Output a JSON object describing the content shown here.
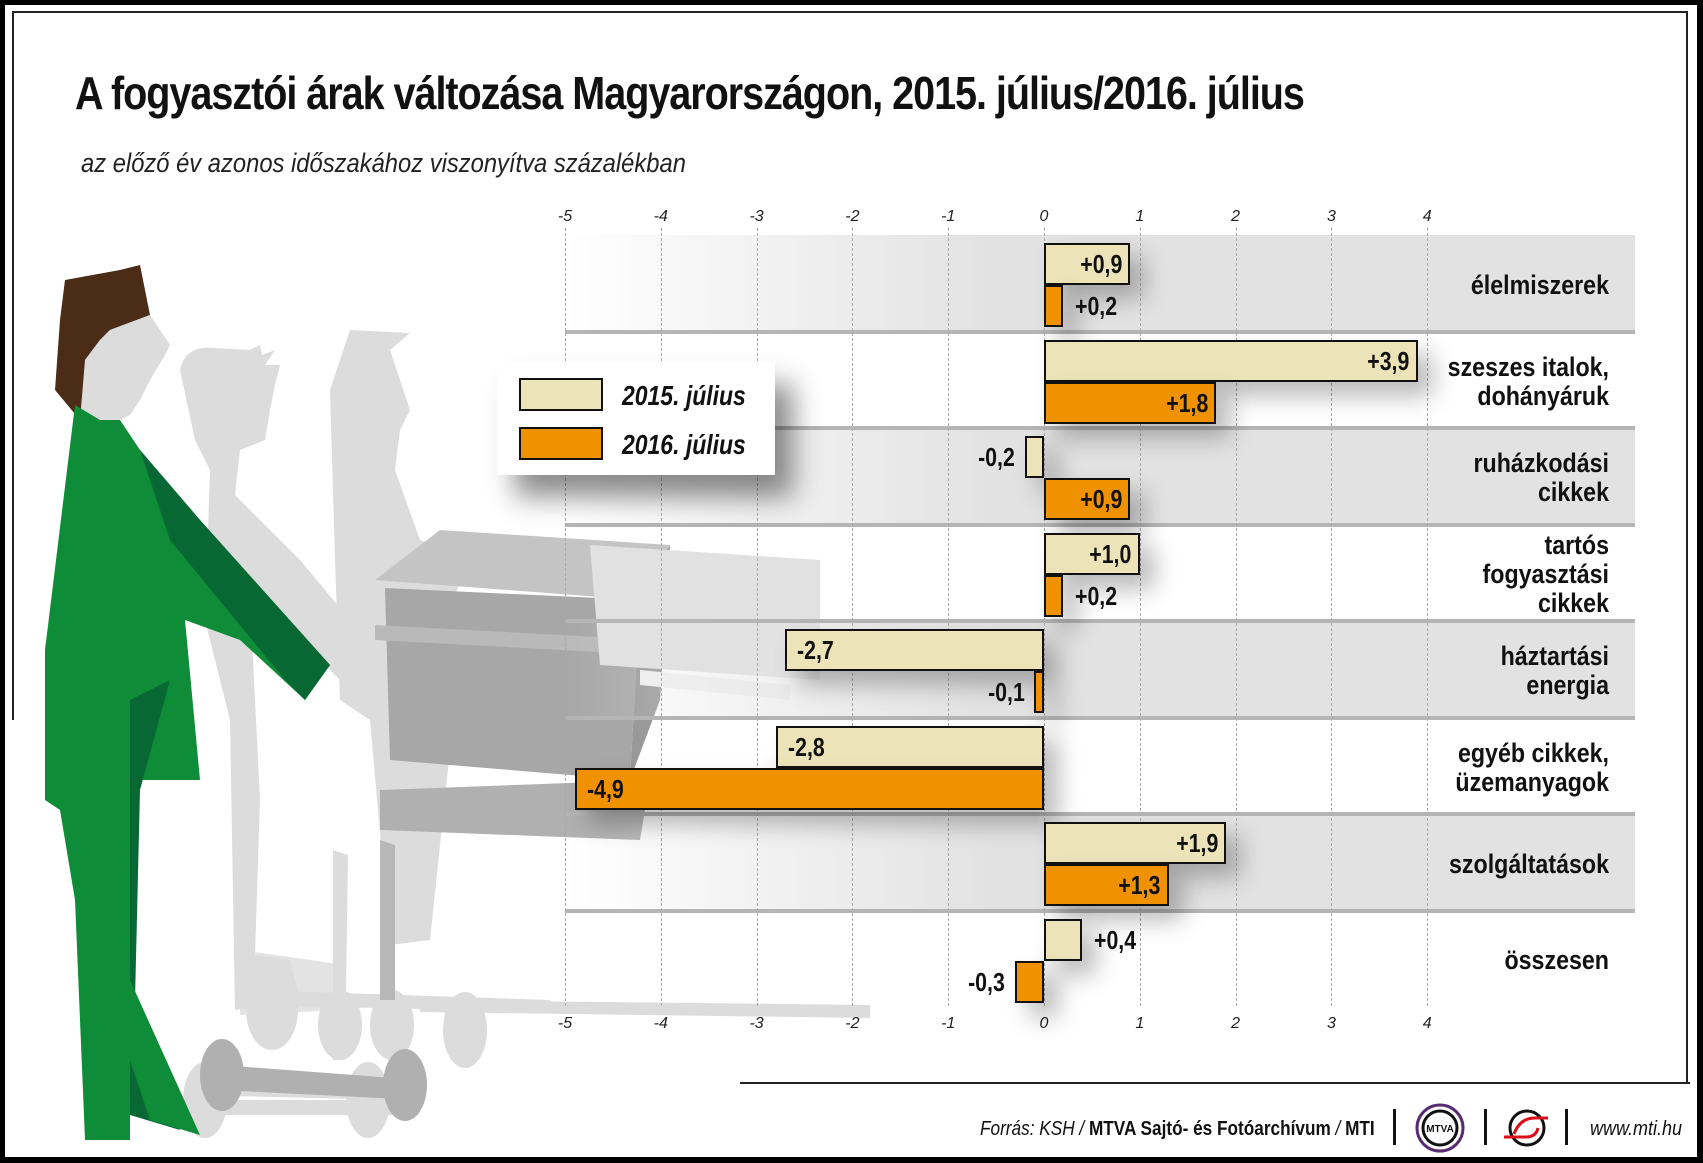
{
  "header": {
    "title": "A fogyasztói árak változása Magyarországon, 2015. július/2016. július",
    "subtitle": "az előző év azonos időszakához viszonyítva százalékban"
  },
  "legend": {
    "items": [
      {
        "label": "2015. július",
        "color": "#ede3b8"
      },
      {
        "label": "2016. július",
        "color": "#f09100"
      }
    ]
  },
  "axis": {
    "ticks": [
      "-5",
      "-4",
      "-3",
      "-2",
      "-1",
      "0",
      "1",
      "2",
      "3",
      "4"
    ]
  },
  "rows": [
    {
      "category": "élelmiszerek",
      "v2015": "+0,9",
      "v2016": "+0,2"
    },
    {
      "category": "szeszes italok, dohányáruk",
      "v2015": "+3,9",
      "v2016": "+1,8"
    },
    {
      "category": "ruházkodási cikkek",
      "v2015": "-0,2",
      "v2016": "+0,9"
    },
    {
      "category": "tartós fogyasztási cikkek",
      "v2015": "+1,0",
      "v2016": "+0,2"
    },
    {
      "category": "háztartási energia",
      "v2015": "-2,7",
      "v2016": "-0,1"
    },
    {
      "category": "egyéb cikkek, üzemanyagok",
      "v2015": "-2,8",
      "v2016": "-4,9"
    },
    {
      "category": "szolgáltatások",
      "v2015": "+1,9",
      "v2016": "+1,3"
    },
    {
      "category": "összesen",
      "v2015": "+0,4",
      "v2016": "-0,3"
    }
  ],
  "category_lines": [
    [
      "élelmiszerek"
    ],
    [
      "szeszes italok,",
      "dohányáruk"
    ],
    [
      "ruházkodási",
      "cikkek"
    ],
    [
      "tartós",
      "fogyasztási",
      "cikkek"
    ],
    [
      "háztartási",
      "energia"
    ],
    [
      "egyéb cikkek,",
      "üzemanyagok"
    ],
    [
      "szolgáltatások"
    ],
    [
      "összesen"
    ]
  ],
  "footer": {
    "source_prefix": "Forrás: KSH / ",
    "source_bold": "MTVA Sajtó- és Fotóarchívum",
    "source_sep": " / ",
    "source_mti": "MTI",
    "logo_mtva": "MTVA",
    "url": "www.mti.hu"
  },
  "colors": {
    "series_2015": "#ede3b8",
    "series_2016": "#f09100",
    "figure_green": "#0f8c38",
    "figure_green_dark": "#086834",
    "hair_brown": "#4a2c17"
  },
  "chart_data": {
    "type": "bar",
    "orientation": "horizontal",
    "title": "A fogyasztói árak változása Magyarországon, 2015. július/2016. július",
    "subtitle": "az előző év azonos időszakához viszonyítva százalékban",
    "categories": [
      "élelmiszerek",
      "szeszes italok, dohányáruk",
      "ruházkodási cikkek",
      "tartós fogyasztási cikkek",
      "háztartási energia",
      "egyéb cikkek, üzemanyagok",
      "szolgáltatások",
      "összesen"
    ],
    "series": [
      {
        "name": "2015. július",
        "values": [
          0.9,
          3.9,
          -0.2,
          1.0,
          -2.7,
          -2.8,
          1.9,
          0.4
        ]
      },
      {
        "name": "2016. július",
        "values": [
          0.2,
          1.8,
          0.9,
          0.2,
          -0.1,
          -4.9,
          1.3,
          -0.3
        ]
      }
    ],
    "xlabel": "",
    "ylabel": "",
    "xlim": [
      -5,
      4
    ],
    "xticks": [
      -5,
      -4,
      -3,
      -2,
      -1,
      0,
      1,
      2,
      3,
      4
    ],
    "grid": "vertical dashed",
    "legend_position": "upper left (inside plot)",
    "source": "Forrás: KSH / MTVA Sajtó- és Fotóarchívum / MTI"
  }
}
